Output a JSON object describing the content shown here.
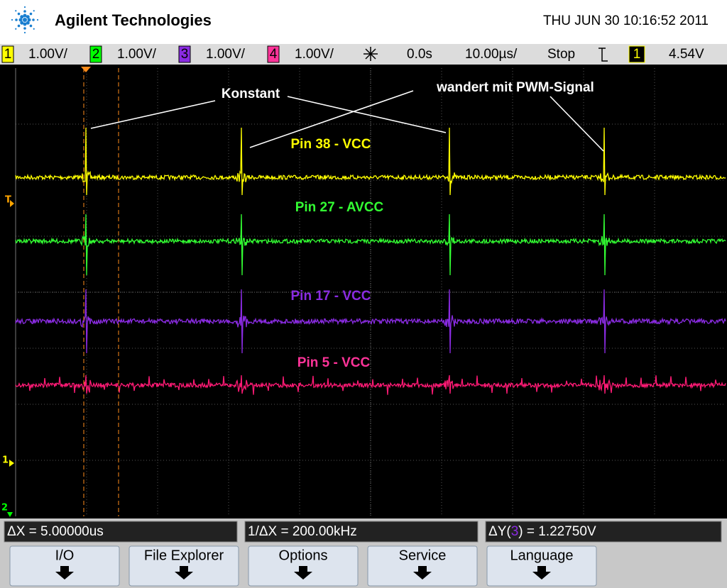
{
  "header": {
    "brand": "Agilent Technologies",
    "datetime": "THU JUN 30 10:16:52 2011"
  },
  "status_bar": {
    "channels": [
      {
        "number": "1",
        "scale": "1.00V/"
      },
      {
        "number": "2",
        "scale": "1.00V/"
      },
      {
        "number": "3",
        "scale": "1.00V/"
      },
      {
        "number": "4",
        "scale": "1.00V/"
      }
    ],
    "time_offset": "0.0s",
    "time_scale": "10.00µs/",
    "run_state": "Stop",
    "trigger_source": "1",
    "trigger_level": "4.54V"
  },
  "screen": {
    "annotations": [
      "Konstant",
      "wandert mit PWM-Signal"
    ],
    "traces": [
      {
        "label": "Pin 38 - VCC"
      },
      {
        "label": "Pin 27 - AVCC"
      },
      {
        "label": "Pin 17 - VCC"
      },
      {
        "label": "Pin 5 - VCC"
      }
    ],
    "markers": [
      "T",
      "1",
      "2"
    ]
  },
  "measurements": {
    "delta_x": "ΔX = 5.00000us",
    "inverse_delta_x": "1/ΔX = 200.00kHz",
    "delta_y": {
      "prefix": "ΔY(",
      "channel": "3",
      "suffix": ") = 1.22750V"
    }
  },
  "softkeys": [
    "I/O",
    "File Explorer",
    "Options",
    "Service",
    "Language"
  ]
}
